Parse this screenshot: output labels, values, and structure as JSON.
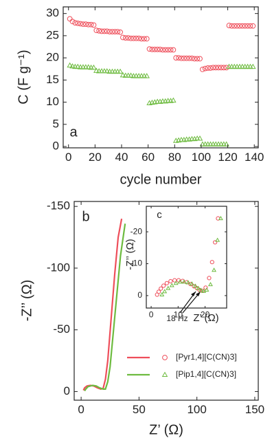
{
  "chart_data": [
    {
      "type": "scatter",
      "panel_label": "a",
      "x_label": "cycle number",
      "y_label": "C (F g⁻¹)",
      "xlim": [
        -4,
        143
      ],
      "ylim": [
        -0.3,
        31.5
      ],
      "xticks": [
        0,
        20,
        40,
        60,
        80,
        100,
        120,
        140
      ],
      "yticks": [
        0,
        5,
        10,
        15,
        20,
        25,
        30
      ],
      "x": [
        1,
        3,
        5,
        7,
        9,
        11,
        13,
        15,
        17,
        19,
        21,
        23,
        25,
        27,
        29,
        31,
        33,
        35,
        37,
        39,
        41,
        43,
        45,
        47,
        49,
        51,
        53,
        55,
        57,
        59,
        61,
        63,
        65,
        67,
        69,
        71,
        73,
        75,
        77,
        79,
        81,
        83,
        85,
        87,
        89,
        91,
        93,
        95,
        97,
        99,
        101,
        103,
        105,
        107,
        109,
        111,
        113,
        115,
        117,
        119,
        121,
        123,
        125,
        127,
        129,
        131,
        133,
        135,
        137,
        139
      ],
      "series": [
        {
          "color": "#ee4e5a",
          "marker": "circle",
          "values": [
            28.8,
            28.2,
            27.9,
            27.8,
            27.7,
            27.6,
            27.6,
            27.5,
            27.5,
            27.4,
            26.2,
            26.1,
            26.0,
            26.0,
            26.0,
            25.9,
            25.9,
            25.9,
            25.9,
            25.8,
            24.6,
            24.5,
            24.5,
            24.4,
            24.4,
            24.4,
            24.4,
            24.3,
            24.3,
            24.3,
            22.0,
            21.9,
            21.9,
            21.9,
            21.9,
            21.8,
            21.8,
            21.8,
            21.8,
            21.8,
            20.0,
            20.0,
            19.9,
            19.9,
            19.9,
            19.9,
            19.9,
            19.8,
            19.8,
            19.8,
            17.4,
            17.6,
            17.7,
            17.7,
            17.8,
            17.8,
            17.8,
            17.8,
            17.8,
            17.8,
            27.3,
            27.2,
            27.2,
            27.2,
            27.2,
            27.2,
            27.2,
            27.2,
            27.2,
            27.2
          ]
        },
        {
          "color": "#6dbb3f",
          "marker": "triangle",
          "values": [
            18.3,
            18.1,
            18.0,
            18.0,
            17.9,
            17.9,
            17.9,
            17.9,
            17.8,
            17.8,
            17.1,
            17.0,
            17.0,
            17.0,
            17.0,
            16.9,
            16.9,
            16.9,
            16.9,
            16.9,
            16.1,
            16.0,
            16.0,
            16.0,
            15.9,
            15.9,
            15.9,
            15.9,
            15.9,
            15.9,
            9.8,
            9.9,
            10.0,
            10.1,
            10.1,
            10.2,
            10.2,
            10.3,
            10.3,
            10.4,
            1.3,
            1.4,
            1.5,
            1.5,
            1.6,
            1.6,
            1.7,
            1.7,
            1.8,
            1.8,
            0.5,
            0.5,
            0.5,
            0.5,
            0.5,
            0.5,
            0.5,
            0.5,
            0.5,
            0.5,
            18.0,
            18.0,
            18.0,
            18.0,
            18.0,
            18.0,
            18.0,
            18.0,
            18.0,
            18.0
          ]
        }
      ]
    },
    {
      "type": "line",
      "panel_label": "b",
      "x_label": "Z’ (Ω)",
      "y_label": "-Z’’ (Ω)",
      "xlim": [
        -6,
        153
      ],
      "ylim": [
        7,
        -154
      ],
      "xticks": [
        0,
        50,
        100,
        150
      ],
      "yticks": [
        0,
        -50,
        -100,
        -150
      ],
      "series": [
        {
          "name": "[Pyr1,4][C(CN)3]",
          "color": "#ee4e5a",
          "marker": "circle",
          "x": [
            2,
            3,
            5,
            8,
            11,
            14,
            17,
            19,
            21,
            23,
            26,
            29,
            32,
            35
          ],
          "values": [
            -1,
            -3,
            -4.5,
            -5,
            -4.5,
            -3,
            -2,
            -2.5,
            -10,
            -25,
            -60,
            -95,
            -125,
            -140
          ]
        },
        {
          "name": "[Pip1,4][C(CN)3]",
          "color": "#6dbb3f",
          "marker": "triangle",
          "x": [
            3,
            4,
            6,
            10,
            13,
            16,
            19,
            21,
            23,
            25,
            28,
            31,
            34,
            38
          ],
          "values": [
            -0.5,
            -2,
            -4,
            -5,
            -4.5,
            -3,
            -2,
            -2,
            -8,
            -20,
            -50,
            -80,
            -110,
            -136
          ]
        }
      ]
    },
    {
      "type": "scatter",
      "panel_label": "c",
      "x_label": "Z’ (Ω)",
      "y_label": "-Z’’ (Ω)",
      "annotation": "18 Hz",
      "xlim": [
        -1.8,
        28
      ],
      "ylim": [
        3.9,
        -28
      ],
      "xticks": [
        0,
        10,
        20
      ],
      "yticks": [
        0,
        -10,
        -20
      ],
      "series": [
        {
          "color": "#ee4e5a",
          "marker": "circle",
          "x": [
            2.2,
            2.8,
            3.6,
            4.6,
            5.8,
            7.2,
            8.7,
            10.2,
            11.7,
            13.2,
            14.6,
            15.9,
            17,
            18,
            19,
            20.2,
            21.5,
            22.6,
            23.7,
            24.8
          ],
          "values": [
            -0.3,
            -1.2,
            -2.2,
            -3.1,
            -3.9,
            -4.5,
            -4.8,
            -4.8,
            -4.6,
            -4.2,
            -3.6,
            -2.9,
            -2.3,
            -1.7,
            -1.5,
            -2.5,
            -5.5,
            -10.5,
            -16.7,
            -24.2
          ]
        },
        {
          "color": "#6dbb3f",
          "marker": "triangle",
          "x": [
            4,
            5,
            6.3,
            7.7,
            9.2,
            10.7,
            12.2,
            13.7,
            15.1,
            16.4,
            17.5,
            18.5,
            19.5,
            20.6,
            22,
            23.3,
            24.6,
            25.8
          ],
          "values": [
            -0.3,
            -1.3,
            -2.3,
            -3.2,
            -3.9,
            -4.3,
            -4.3,
            -4.1,
            -3.7,
            -3,
            -2.3,
            -1.7,
            -1.4,
            -1.8,
            -3.5,
            -8,
            -17.4,
            -24.2
          ]
        }
      ]
    }
  ]
}
